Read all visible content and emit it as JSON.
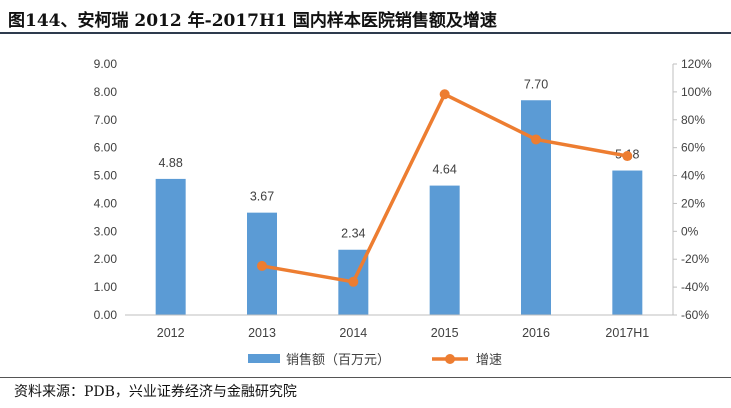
{
  "header": {
    "title": "图144、安柯瑞 2012 年-2017H1 国内样本医院销售额及增速"
  },
  "footer": {
    "source": "资料来源：PDB，兴业证券经济与金融研究院"
  },
  "colors": {
    "bar": "#5b9bd5",
    "line": "#ed7d31",
    "axis": "#bfbfbf",
    "text": "#404040"
  },
  "chart_data": {
    "type": "bar",
    "categories": [
      "2012",
      "2013",
      "2014",
      "2015",
      "2016",
      "2017H1"
    ],
    "series": [
      {
        "name": "销售额（百万元）",
        "type": "bar",
        "axis": "left",
        "values": [
          4.88,
          3.67,
          2.34,
          4.64,
          7.7,
          5.18
        ],
        "labels": [
          "4.88",
          "3.67",
          "2.34",
          "4.64",
          "7.70",
          "5.18"
        ]
      },
      {
        "name": "增速",
        "type": "line",
        "axis": "right",
        "values": [
          null,
          -0.248,
          -0.362,
          0.983,
          0.659,
          0.54
        ]
      }
    ],
    "ylim": [
      0,
      9
    ],
    "yticks": [
      "0.00",
      "1.00",
      "2.00",
      "3.00",
      "4.00",
      "5.00",
      "6.00",
      "7.00",
      "8.00",
      "9.00"
    ],
    "y2lim": [
      -0.6,
      1.2
    ],
    "y2ticks": [
      "-60%",
      "-40%",
      "-20%",
      "0%",
      "20%",
      "40%",
      "60%",
      "80%",
      "100%",
      "120%"
    ],
    "grid": false,
    "legend": "bottom-center"
  }
}
